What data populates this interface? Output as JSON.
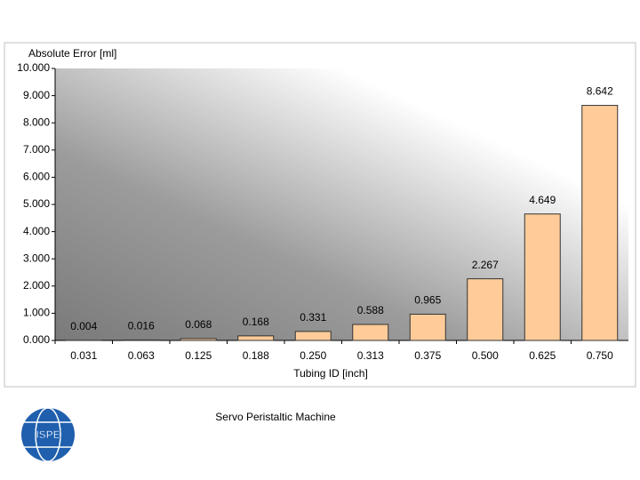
{
  "chart_data": {
    "type": "bar",
    "y_label": "Absolute Error [ml]",
    "x_label": "Tubing ID [inch]",
    "categories": [
      "0.031",
      "0.063",
      "0.125",
      "0.188",
      "0.250",
      "0.313",
      "0.375",
      "0.500",
      "0.625",
      "0.750"
    ],
    "values": [
      0.004,
      0.016,
      0.068,
      0.168,
      0.331,
      0.588,
      0.965,
      2.267,
      4.649,
      8.642
    ],
    "value_labels": [
      "0.004",
      "0.016",
      "0.068",
      "0.168",
      "0.331",
      "0.588",
      "0.965",
      "2.267",
      "4.649",
      "8.642"
    ],
    "color": "#ffcc99",
    "ylim": [
      0,
      10
    ],
    "yticks": [
      {
        "value": 0,
        "label": "0.000"
      },
      {
        "value": 1,
        "label": "1.000"
      },
      {
        "value": 2,
        "label": "2.000"
      },
      {
        "value": 3,
        "label": "3.000"
      },
      {
        "value": 4,
        "label": "4.000"
      },
      {
        "value": 5,
        "label": "5.000"
      },
      {
        "value": 6,
        "label": "6.000"
      },
      {
        "value": 7,
        "label": "7.000"
      },
      {
        "value": 8,
        "label": "8.000"
      },
      {
        "value": 9,
        "label": "9.000"
      },
      {
        "value": 10,
        "label": "10.000"
      }
    ]
  },
  "caption": "Servo Peristaltic Machine",
  "logo": "ISPE"
}
